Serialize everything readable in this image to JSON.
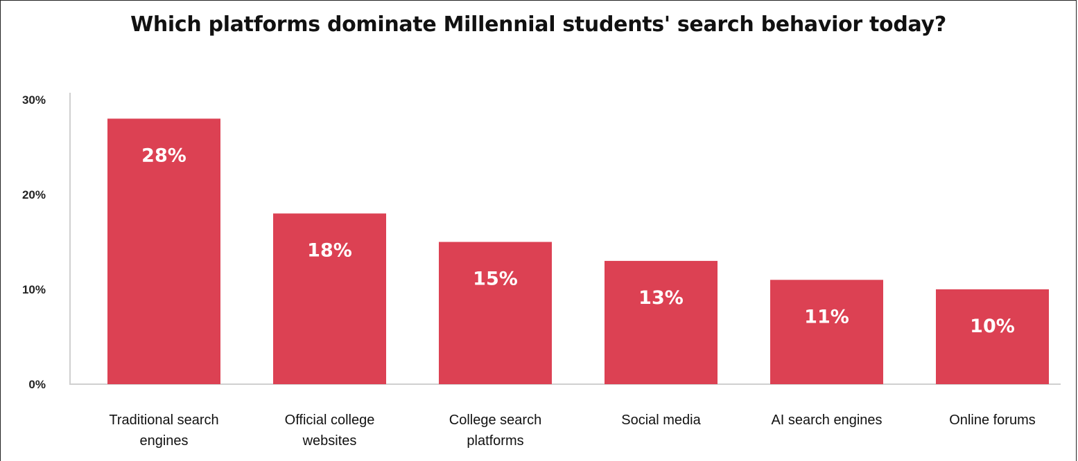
{
  "chart_data": {
    "type": "bar",
    "title": "Which platforms dominate Millennial students' search behavior today?",
    "categories": [
      [
        "Traditional search",
        "engines"
      ],
      [
        "Official college",
        "websites"
      ],
      [
        "College search",
        "platforms"
      ],
      [
        "Social media"
      ],
      [
        "AI search engines"
      ],
      [
        "Online forums"
      ]
    ],
    "values": [
      28,
      18,
      15,
      13,
      11,
      10
    ],
    "data_labels": [
      "28%",
      "18%",
      "15%",
      "13%",
      "11%",
      "10%"
    ],
    "ylim": [
      0,
      30
    ],
    "yticks": [
      0,
      10,
      20,
      30
    ],
    "ytick_labels": [
      "0%",
      "10%",
      "20%",
      "30%"
    ],
    "xlabel": "",
    "ylabel": "",
    "grid": false,
    "bar_color": "#dc4153"
  }
}
